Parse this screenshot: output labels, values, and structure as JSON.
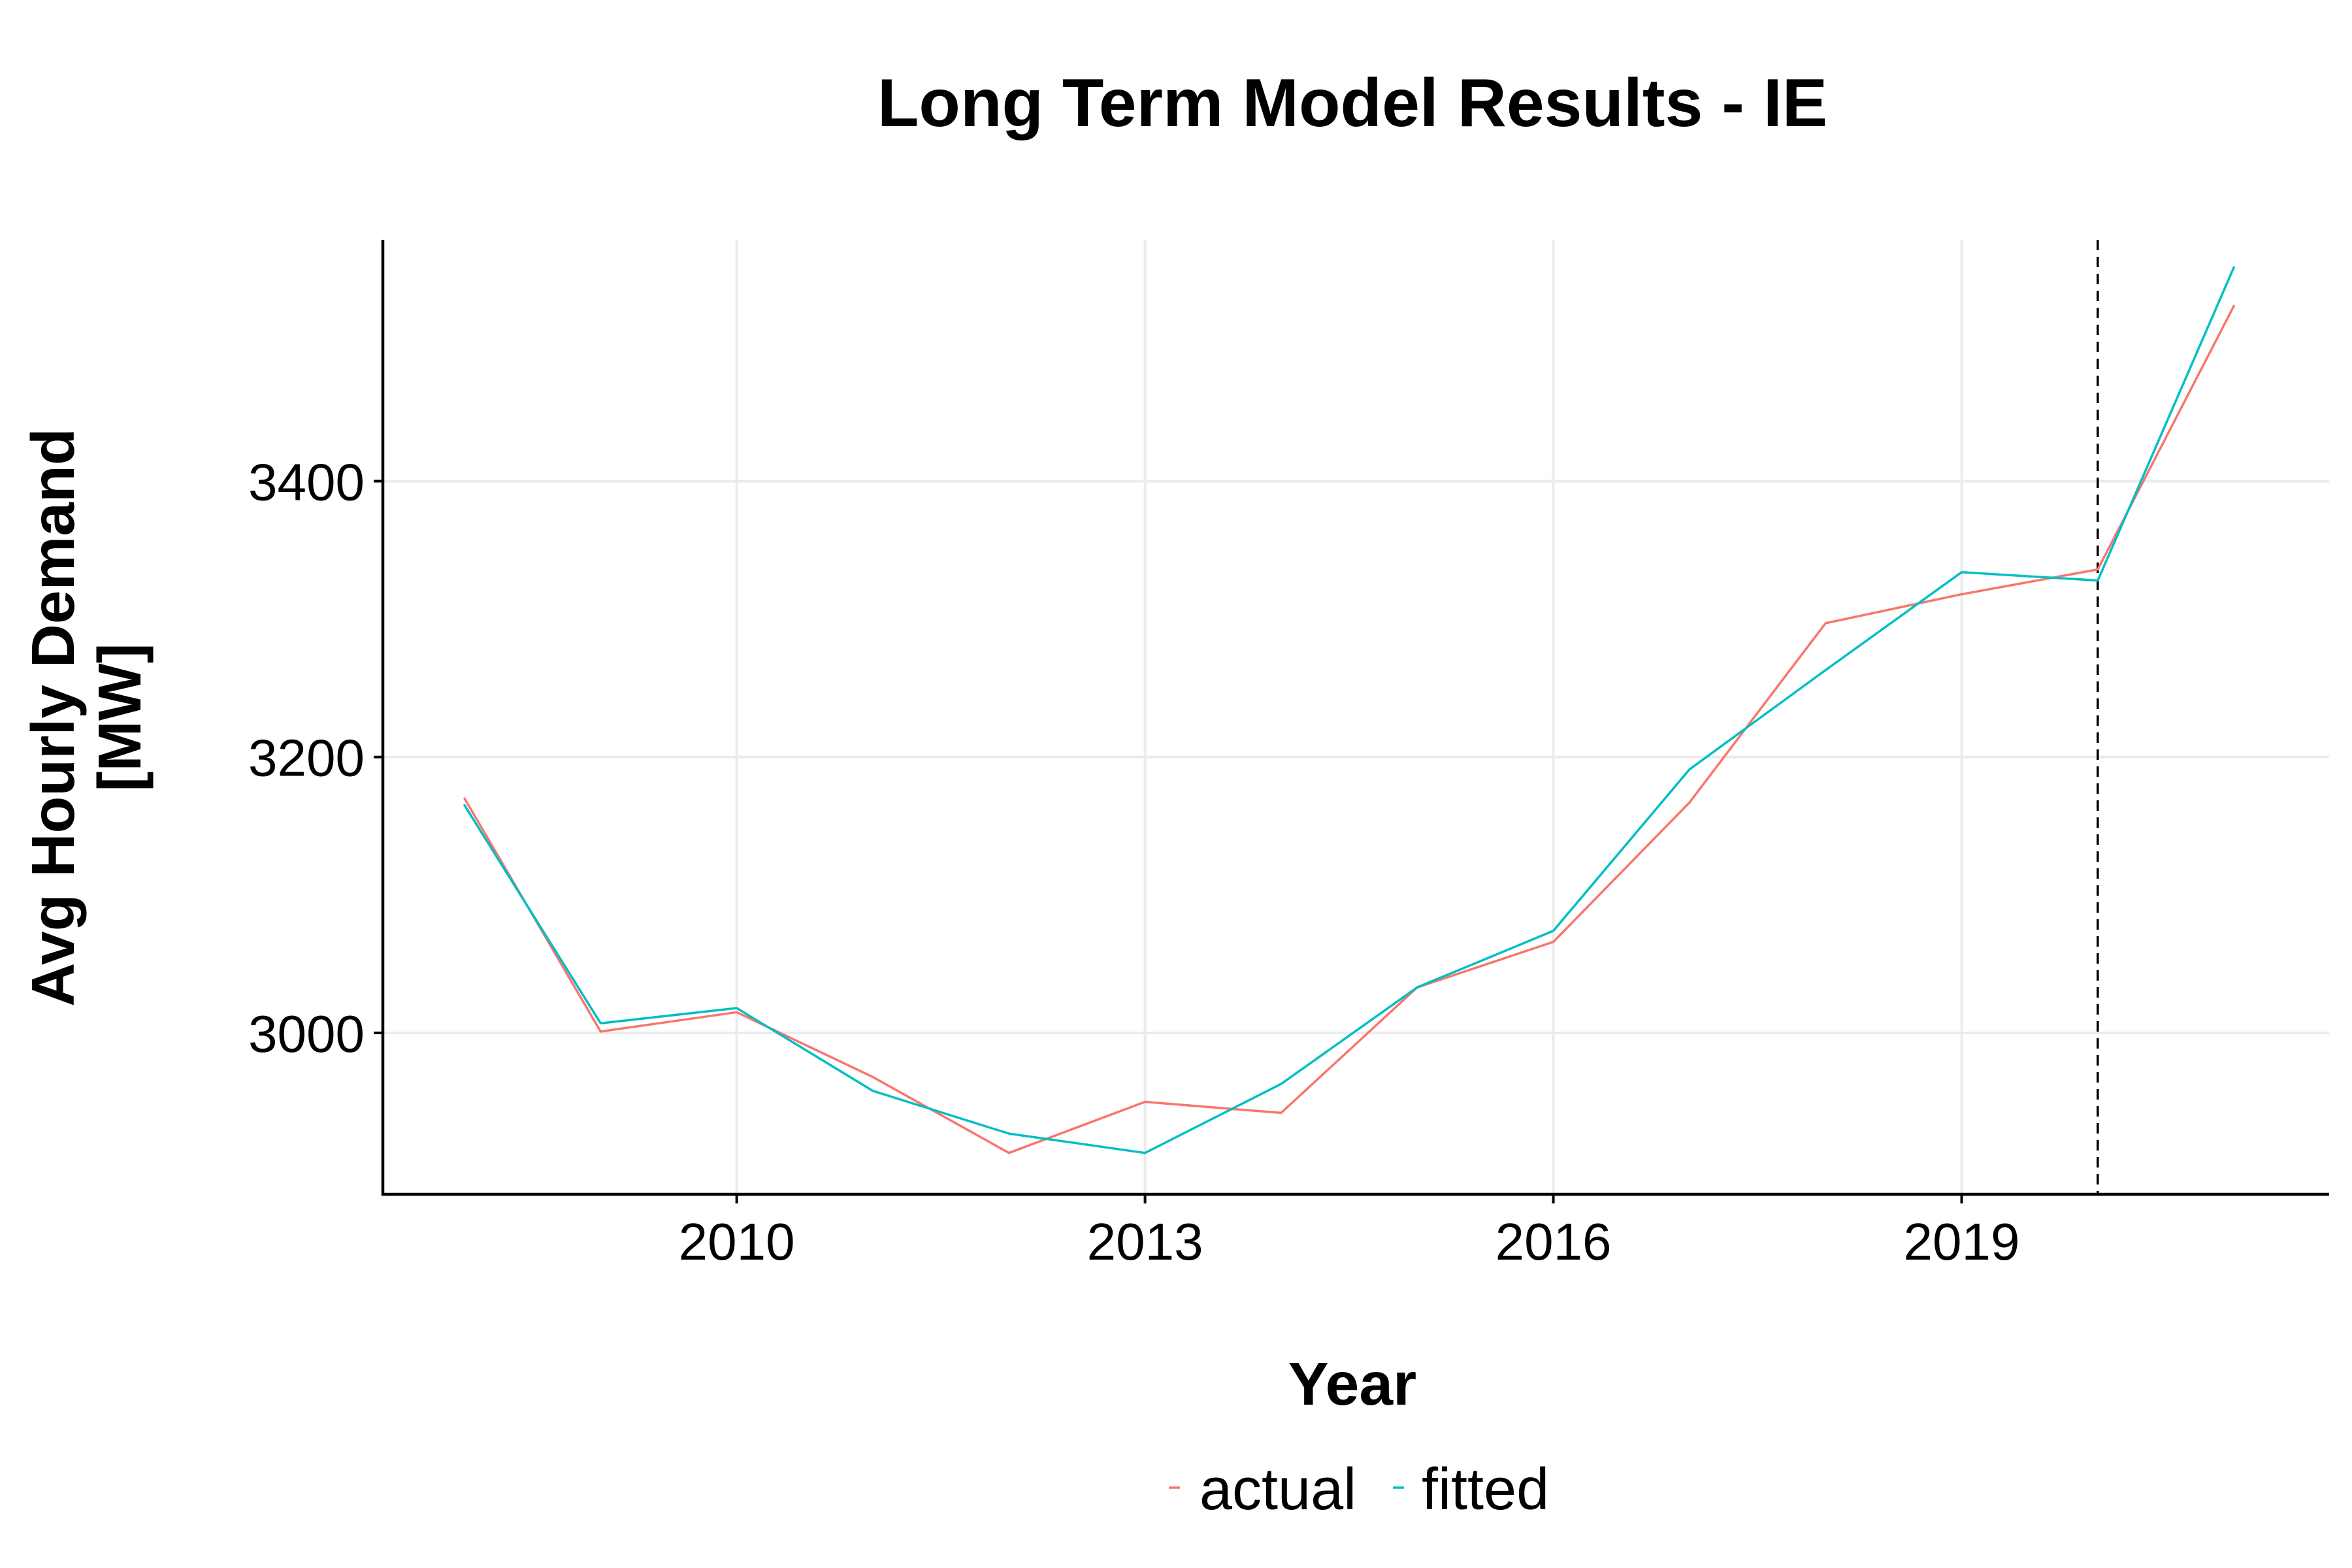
{
  "chart_data": {
    "type": "line",
    "title": "Long Term Model Results - IE",
    "xlabel": "Year",
    "ylabel": "Avg Hourly Demand",
    "ylabel_unit": "[MW]",
    "x": [
      2008,
      2009,
      2010,
      2011,
      2012,
      2013,
      2014,
      2015,
      2016,
      2017,
      2018,
      2019,
      2020,
      2021
    ],
    "xlim": [
      2007.4,
      2021.7
    ],
    "ylim": [
      2883,
      3575
    ],
    "x_ticks": [
      2010,
      2013,
      2016,
      2019
    ],
    "y_ticks": [
      3000,
      3200,
      3400
    ],
    "grid": true,
    "forecast_start_year": 2020,
    "reference_line_style": "dashed",
    "series": [
      {
        "name": "actual",
        "color": "#F8766D",
        "values": [
          3170,
          3001,
          3015,
          2968,
          2913,
          2950,
          2942,
          3033,
          3066,
          3167,
          3297,
          3318,
          3336,
          3527
        ]
      },
      {
        "name": "fitted",
        "color": "#00BFC4",
        "values": [
          3165,
          3007,
          3018,
          2958,
          2927,
          2913,
          2963,
          3033,
          3074,
          3191,
          3263,
          3334,
          3328,
          3555
        ]
      }
    ],
    "legend_position": "bottom"
  },
  "colors": {
    "background": "#FFFFFF",
    "grid": "#EBEBEB",
    "axis": "#000000",
    "actual": "#F8766D",
    "fitted": "#00BFC4"
  }
}
